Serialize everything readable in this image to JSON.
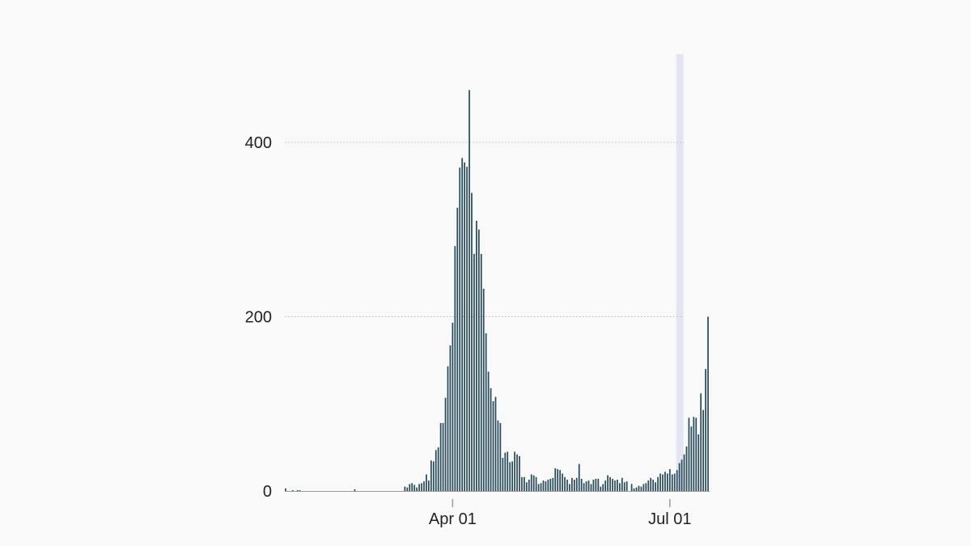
{
  "chart_data": {
    "type": "bar",
    "title": "",
    "xlabel": "",
    "ylabel": "",
    "x_start": "2020-01-22",
    "ylim": [
      0,
      500
    ],
    "y_ticks": [
      0,
      200,
      400
    ],
    "y_tick_labels": [
      "0",
      "200",
      "400"
    ],
    "x_ticks": [
      {
        "date": "2020-04-01",
        "label": "Apr 01"
      },
      {
        "date": "2020-07-01",
        "label": "Jul 01"
      }
    ],
    "grid": "horizontal dotted",
    "highlight": {
      "from": "2020-07-04",
      "to": "2020-07-06",
      "color": "#e4e4f2"
    },
    "bar_color": "#2a4d5c",
    "values": [
      3,
      0,
      0,
      1,
      0,
      1,
      1,
      0,
      0,
      0,
      0,
      0,
      0,
      0,
      0,
      0,
      0,
      0,
      0,
      0,
      0,
      0,
      0,
      0,
      0,
      0,
      0,
      0,
      0,
      2,
      0,
      0,
      0,
      0,
      0,
      0,
      0,
      0,
      0,
      0,
      0,
      0,
      0,
      0,
      0,
      0,
      0,
      0,
      0,
      0,
      5,
      4,
      8,
      9,
      7,
      4,
      8,
      9,
      11,
      19,
      12,
      35,
      34,
      47,
      50,
      78,
      78,
      107,
      143,
      167,
      193,
      281,
      325,
      371,
      382,
      377,
      372,
      460,
      342,
      272,
      310,
      300,
      272,
      232,
      181,
      137,
      118,
      103,
      108,
      81,
      78,
      38,
      44,
      45,
      33,
      34,
      45,
      42,
      40,
      16,
      16,
      10,
      13,
      19,
      18,
      16,
      8,
      9,
      12,
      11,
      13,
      14,
      15,
      26,
      25,
      24,
      20,
      16,
      13,
      8,
      15,
      13,
      15,
      31,
      14,
      9,
      11,
      12,
      8,
      13,
      14,
      14,
      5,
      8,
      12,
      18,
      16,
      14,
      12,
      13,
      9,
      15,
      10,
      11,
      0,
      8,
      3,
      4,
      6,
      5,
      8,
      9,
      12,
      15,
      13,
      10,
      16,
      20,
      19,
      22,
      20,
      25,
      19,
      20,
      24,
      32,
      36,
      42,
      51,
      84,
      74,
      85,
      84,
      65,
      112,
      93,
      140,
      200
    ]
  }
}
